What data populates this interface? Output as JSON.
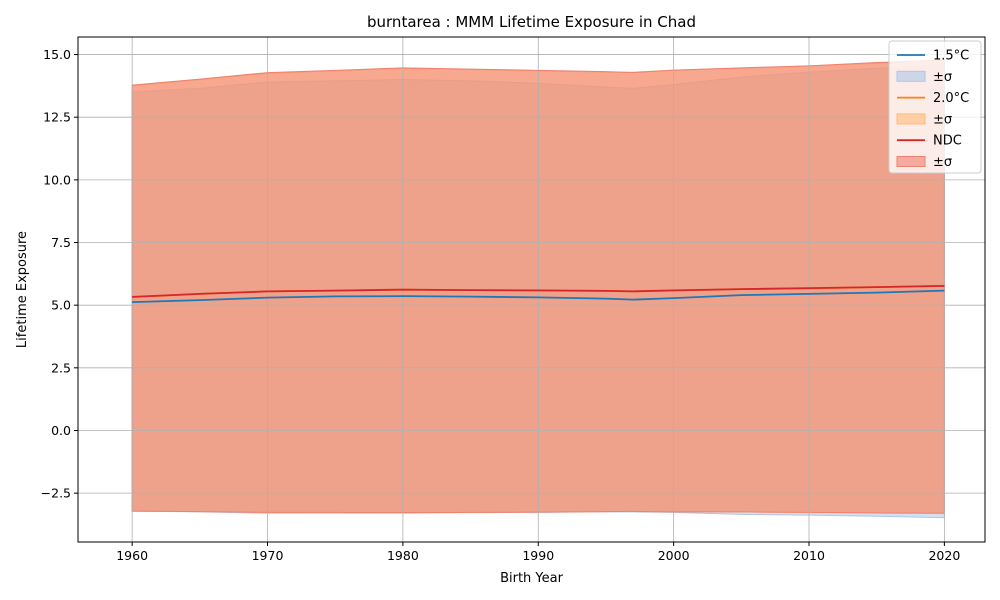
{
  "chart_data": {
    "type": "line",
    "title": "burntarea : MMM Lifetime Exposure in Chad",
    "xlabel": "Birth Year",
    "ylabel": "Lifetime Exposure",
    "xlim": [
      1956,
      2023
    ],
    "ylim": [
      -4.45,
      15.7
    ],
    "xticks": [
      1960,
      1970,
      1980,
      1990,
      2000,
      2010,
      2020
    ],
    "xtick_labels": [
      "1960",
      "1970",
      "1980",
      "1990",
      "2000",
      "2010",
      "2020"
    ],
    "yticks": [
      -2.5,
      0,
      2.5,
      5,
      7.5,
      10,
      12.5,
      15
    ],
    "ytick_labels": [
      "−2.5",
      "0.0",
      "2.5",
      "5.0",
      "7.5",
      "10.0",
      "12.5",
      "15.0"
    ],
    "grid": true,
    "legend_position": "top-right",
    "x": [
      1960,
      1965,
      1970,
      1975,
      1980,
      1985,
      1990,
      1995,
      1997,
      2000,
      2005,
      2010,
      2015,
      2020
    ],
    "series": [
      {
        "name": "1.5°C",
        "band_label": "±σ",
        "color": "#1f77b4",
        "band_color": "#aec7e8",
        "values": [
          5.12,
          5.2,
          5.3,
          5.35,
          5.36,
          5.34,
          5.31,
          5.26,
          5.22,
          5.28,
          5.4,
          5.45,
          5.5,
          5.58
        ],
        "upper": [
          13.5,
          13.65,
          13.9,
          13.95,
          14.0,
          13.95,
          13.85,
          13.7,
          13.65,
          13.8,
          14.1,
          14.3,
          14.45,
          14.6
        ],
        "lower": [
          -3.22,
          -3.25,
          -3.3,
          -3.3,
          -3.3,
          -3.28,
          -3.27,
          -3.25,
          -3.25,
          -3.27,
          -3.35,
          -3.38,
          -3.42,
          -3.48
        ]
      },
      {
        "name": "2.0°C",
        "band_label": "±σ",
        "color": "#ff7f0e",
        "band_color": "#ffbb78",
        "values": [
          5.32,
          5.45,
          5.55,
          5.58,
          5.62,
          5.6,
          5.58,
          5.57,
          5.55,
          5.58,
          5.64,
          5.67,
          5.72,
          5.77
        ],
        "upper": [
          13.75,
          14.0,
          14.25,
          14.35,
          14.45,
          14.4,
          14.35,
          14.3,
          14.3,
          14.38,
          14.45,
          14.55,
          14.65,
          14.75
        ],
        "lower": [
          -3.22,
          -3.24,
          -3.27,
          -3.28,
          -3.28,
          -3.27,
          -3.26,
          -3.24,
          -3.23,
          -3.25,
          -3.25,
          -3.28,
          -3.3,
          -3.32
        ]
      },
      {
        "name": "NDC",
        "band_label": "±σ",
        "color": "#d62728",
        "band_color": "#f08070",
        "values": [
          5.33,
          5.45,
          5.55,
          5.58,
          5.62,
          5.6,
          5.59,
          5.57,
          5.55,
          5.59,
          5.64,
          5.68,
          5.72,
          5.77
        ],
        "upper": [
          13.78,
          14.02,
          14.28,
          14.37,
          14.47,
          14.42,
          14.37,
          14.32,
          14.28,
          14.38,
          14.47,
          14.55,
          14.68,
          14.78
        ],
        "lower": [
          -3.22,
          -3.24,
          -3.27,
          -3.27,
          -3.28,
          -3.27,
          -3.26,
          -3.24,
          -3.23,
          -3.25,
          -3.25,
          -3.27,
          -3.29,
          -3.3
        ]
      }
    ]
  }
}
